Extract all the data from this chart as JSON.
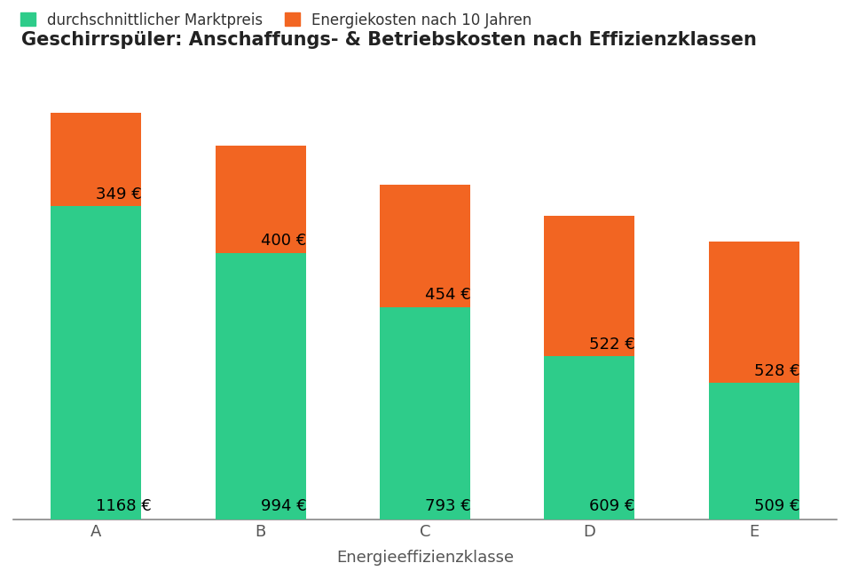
{
  "title": "Geschirrspüler: Anschaffungs- & Betriebskosten nach Effizienzklassen",
  "xlabel": "Energieeffizienzklasse",
  "categories": [
    "A",
    "B",
    "C",
    "D",
    "E"
  ],
  "market_prices": [
    1168,
    994,
    793,
    609,
    509
  ],
  "energy_costs": [
    349,
    400,
    454,
    522,
    528
  ],
  "color_green": "#2ecc8a",
  "color_orange": "#f26522",
  "legend_green": "durchschnittlicher Marktpreis",
  "legend_orange": "Energiekosten nach 10 Jahren",
  "title_fontsize": 15,
  "label_fontsize": 13,
  "tick_fontsize": 13,
  "bar_label_fontsize": 13,
  "background_color": "#ffffff",
  "grid_color": "#dddddd"
}
